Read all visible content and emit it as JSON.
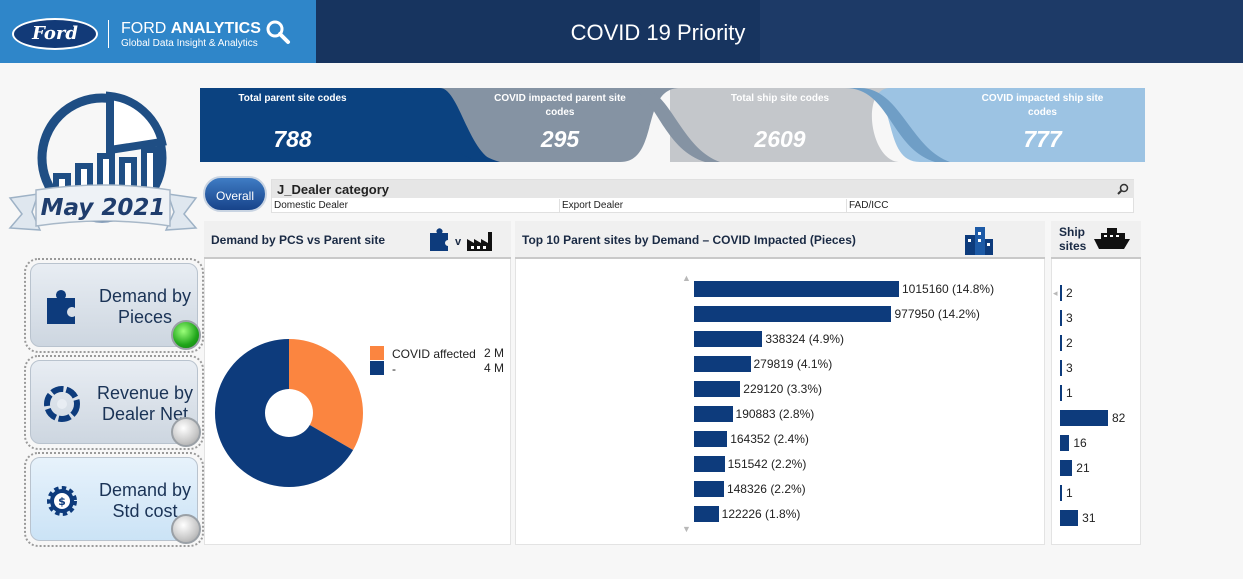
{
  "header": {
    "brand_logo": "Ford",
    "brand_name_light": "FORD ",
    "brand_name_bold": "ANALYTICS",
    "brand_sub": "Global Data Insight & Analytics",
    "title": "COVID 19 Priority"
  },
  "month": "May 2021",
  "nav": [
    {
      "label": "Demand by Pieces",
      "icon": "puzzle-icon",
      "active": true
    },
    {
      "label": "Revenue by Dealer Net",
      "icon": "aperture-icon",
      "active": false
    },
    {
      "label": "Demand by Std cost",
      "icon": "cost-gear-icon",
      "active": false
    }
  ],
  "kpis": [
    {
      "label": "Total parent site codes",
      "value": "788",
      "color": "#0b4280"
    },
    {
      "label": "COVID impacted parent site codes",
      "value": "295",
      "color": "#8593a3"
    },
    {
      "label": "Total ship site codes",
      "value": "2609",
      "color": "#c4c7cb"
    },
    {
      "label": "COVID impacted ship site codes",
      "value": "777",
      "color": "#9cc3e3"
    }
  ],
  "filter": {
    "button": "Overall",
    "title": "J_Dealer category",
    "options": [
      "Domestic Dealer",
      "Export Dealer",
      "FAD/ICC"
    ]
  },
  "donut_panel": {
    "title": "Demand by PCS vs Parent site",
    "vs_label": "v"
  },
  "bars_panel": {
    "title": "Top 10 Parent sites by Demand – COVID  Impacted (Pieces)"
  },
  "ship_panel": {
    "title": "Ship sites"
  },
  "chart_data": [
    {
      "type": "pie",
      "labels": [
        "COVID affected",
        "-"
      ],
      "values": [
        2,
        4
      ],
      "value_labels": [
        "2 M",
        "4 M"
      ],
      "colors": [
        "#fb8540",
        "#0d3b7c"
      ],
      "legend": "right"
    },
    {
      "type": "bar",
      "orientation": "horizontal",
      "values": [
        1015160,
        977950,
        338324,
        279819,
        229120,
        190883,
        164352,
        151542,
        148326,
        122226
      ],
      "labels": [
        "1015160",
        "977950",
        "338324",
        "279819",
        "229120",
        "190883",
        "164352",
        "151542",
        "148326",
        "122226"
      ],
      "percents": [
        "(14.8%)",
        "(14.2%)",
        "(4.9%)",
        "(4.1%)",
        "(3.3%)",
        "(2.8%)",
        "(2.4%)",
        "(2.2%)",
        "(2.2%)",
        "(1.8%)"
      ],
      "color": "#0d3b7c"
    },
    {
      "type": "bar",
      "orientation": "horizontal",
      "values": [
        2,
        3,
        2,
        3,
        1,
        82,
        16,
        21,
        1,
        31
      ],
      "color": "#0d3b7c"
    }
  ]
}
